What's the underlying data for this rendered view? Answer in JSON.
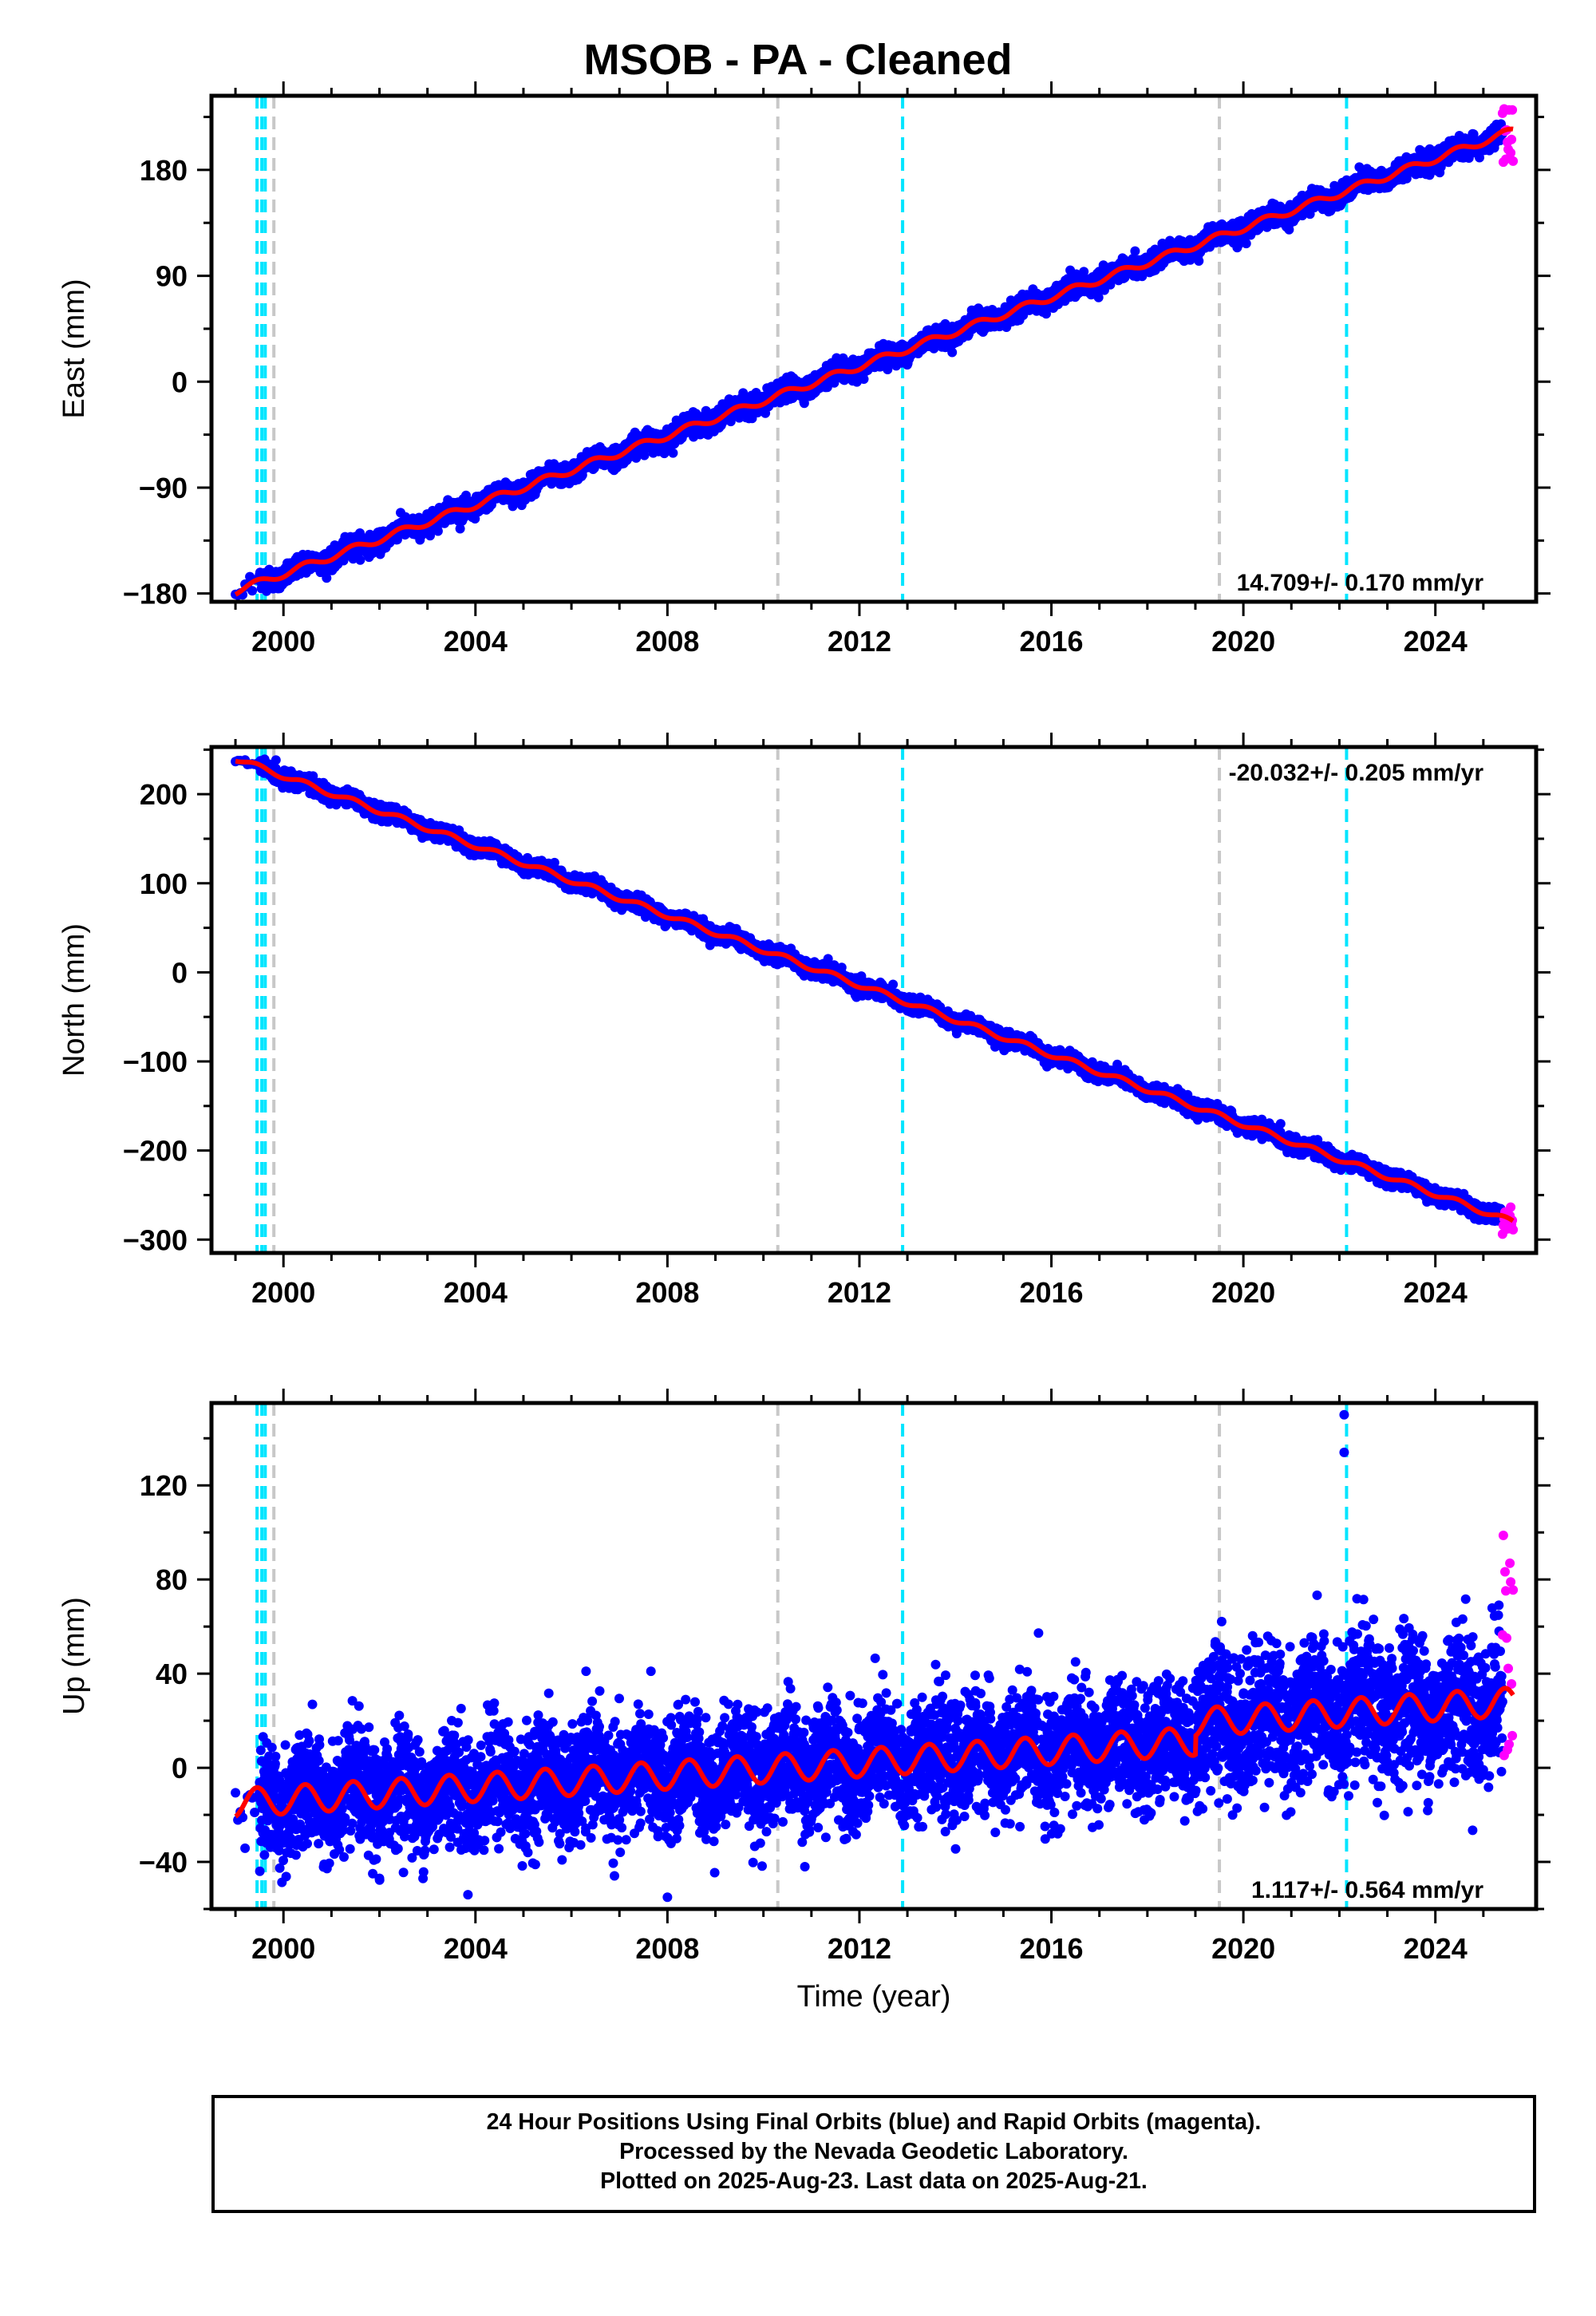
{
  "title": "MSOB  - PA - Cleaned",
  "caption": {
    "line1": "24 Hour Positions Using Final Orbits (blue) and Rapid Orbits (magenta).",
    "line2": "Processed by the Nevada Geodetic Laboratory.",
    "line3": "Plotted on 2025-Aug-23. Last data on 2025-Aug-21."
  },
  "colors": {
    "final_orbits": "#0000ff",
    "rapid_orbits": "#ff00ff",
    "model_fit": "#ff0000",
    "equipment_change_lines": "#c8c8c8",
    "earthquake_lines": "#00e5ff"
  },
  "chart_data": [
    {
      "type": "scatter",
      "panel": "east",
      "ylabel": "East (mm)",
      "xlabel": "",
      "xlim": [
        1998.5,
        2026.1
      ],
      "ylim": [
        -187,
        243
      ],
      "xticks": [
        2000,
        2004,
        2008,
        2012,
        2016,
        2020,
        2024
      ],
      "yticks": [
        -180,
        -90,
        0,
        90,
        180
      ],
      "velocity_text": "14.709+/- 0.170 mm/yr",
      "velocity_position": "bottom-right",
      "trend": {
        "t0": 1999.0,
        "y0": -178,
        "t1": 2025.6,
        "y1": 213
      },
      "seasonal_amplitude": 3,
      "scatter_spread": 4,
      "rapid_orbits": {
        "x_start": 2025.4,
        "x_end": 2025.62,
        "y_min": 183,
        "y_max": 235
      },
      "outliers": []
    },
    {
      "type": "scatter",
      "panel": "north",
      "ylabel": "North (mm)",
      "xlabel": "",
      "xlim": [
        1998.5,
        2026.1
      ],
      "ylim": [
        -315,
        253
      ],
      "xticks": [
        2000,
        2004,
        2008,
        2012,
        2016,
        2020,
        2024
      ],
      "yticks": [
        -300,
        -200,
        -100,
        0,
        100,
        200
      ],
      "velocity_text": "-20.032+/- 0.205 mm/yr",
      "velocity_position": "top-right",
      "trend": {
        "t0": 1999.0,
        "y0": 240,
        "t1": 2025.6,
        "y1": -280
      },
      "seasonal_amplitude": 3,
      "scatter_spread": 4,
      "rapid_orbits": {
        "x_start": 2025.4,
        "x_end": 2025.62,
        "y_min": -300,
        "y_max": -262
      },
      "outliers": []
    },
    {
      "type": "scatter",
      "panel": "up",
      "ylabel": "Up (mm)",
      "xlabel": "Time (year)",
      "xlim": [
        1998.5,
        2026.1
      ],
      "ylim": [
        -60,
        155
      ],
      "xticks": [
        2000,
        2004,
        2008,
        2012,
        2016,
        2020,
        2024
      ],
      "yticks": [
        -40,
        0,
        40,
        80,
        120
      ],
      "velocity_text": "1.117+/- 0.564 mm/yr",
      "velocity_position": "bottom-right",
      "trend": {
        "t0": 1999.0,
        "y0": -15,
        "t1": 2025.6,
        "y1": 20
      },
      "offsets": [
        {
          "year": 2019.0,
          "step": 8
        }
      ],
      "seasonal_amplitude": 6,
      "scatter_spread": 12,
      "rapid_orbits": {
        "x_start": 2025.4,
        "x_end": 2025.62,
        "y_min": 5,
        "y_max": 100
      },
      "outliers": [
        {
          "x": 2022.1,
          "y": 150
        },
        {
          "x": 2022.1,
          "y": 134
        },
        {
          "x": 2008.0,
          "y": -55
        },
        {
          "x": 2002.0,
          "y": -47
        }
      ]
    }
  ],
  "event_lines": {
    "equipment_changes": [
      1999.8,
      2010.3,
      2019.5
    ],
    "earthquakes": [
      1999.45,
      1999.55,
      1999.62,
      2012.9,
      2022.15
    ]
  }
}
